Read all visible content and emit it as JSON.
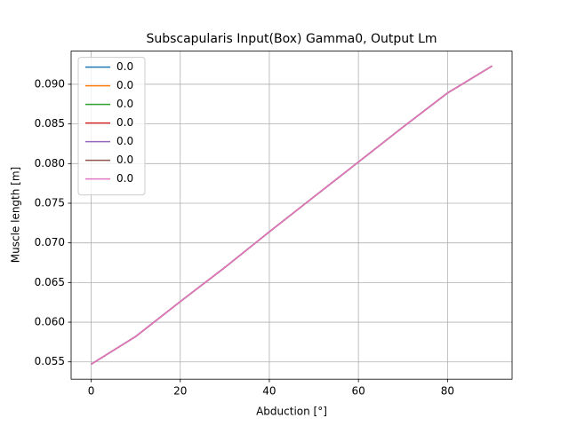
{
  "chart_data": {
    "type": "line",
    "title": "Subscapularis Input(Box) Gamma0, Output Lm",
    "x_label": "Abduction [°]",
    "y_label": "Muscle length [m]",
    "x": [
      0,
      10,
      20,
      30,
      40,
      50,
      60,
      70,
      80,
      90
    ],
    "series": [
      {
        "name": "0.0",
        "color": "#1f77b4",
        "values": [
          0.0547,
          0.0582,
          0.0626,
          0.0669,
          0.0714,
          0.0758,
          0.0802,
          0.0846,
          0.0889,
          0.0923
        ]
      },
      {
        "name": "0.0",
        "color": "#ff7f0e",
        "values": [
          0.0547,
          0.0582,
          0.0626,
          0.0669,
          0.0714,
          0.0758,
          0.0802,
          0.0846,
          0.0889,
          0.0923
        ]
      },
      {
        "name": "0.0",
        "color": "#2ca02c",
        "values": [
          0.0547,
          0.0582,
          0.0626,
          0.0669,
          0.0714,
          0.0758,
          0.0802,
          0.0846,
          0.0889,
          0.0923
        ]
      },
      {
        "name": "0.0",
        "color": "#d62728",
        "values": [
          0.0547,
          0.0582,
          0.0626,
          0.0669,
          0.0714,
          0.0758,
          0.0802,
          0.0846,
          0.0889,
          0.0923
        ]
      },
      {
        "name": "0.0",
        "color": "#9467bd",
        "values": [
          0.0547,
          0.0582,
          0.0626,
          0.0669,
          0.0714,
          0.0758,
          0.0802,
          0.0846,
          0.0889,
          0.0923
        ]
      },
      {
        "name": "0.0",
        "color": "#8c564b",
        "values": [
          0.0547,
          0.0582,
          0.0626,
          0.0669,
          0.0714,
          0.0758,
          0.0802,
          0.0846,
          0.0889,
          0.0923
        ]
      },
      {
        "name": "0.0",
        "color": "#e377c2",
        "values": [
          0.0547,
          0.0582,
          0.0626,
          0.0669,
          0.0714,
          0.0758,
          0.0802,
          0.0846,
          0.0889,
          0.0923
        ]
      }
    ],
    "xlim": [
      -4.5,
      94.5
    ],
    "xticks": [
      0,
      20,
      40,
      60,
      80
    ],
    "ylim": [
      0.05282,
      0.09418
    ],
    "yticks": [
      0.055,
      {
        "value": 0.06,
        "label": "0.060"
      },
      0.065,
      {
        "value": 0.07,
        "label": "0.070"
      },
      0.075,
      {
        "value": 0.08,
        "label": "0.080"
      },
      0.085,
      {
        "value": 0.09,
        "label": "0.090"
      }
    ],
    "grid": true,
    "legend": "upper left"
  }
}
